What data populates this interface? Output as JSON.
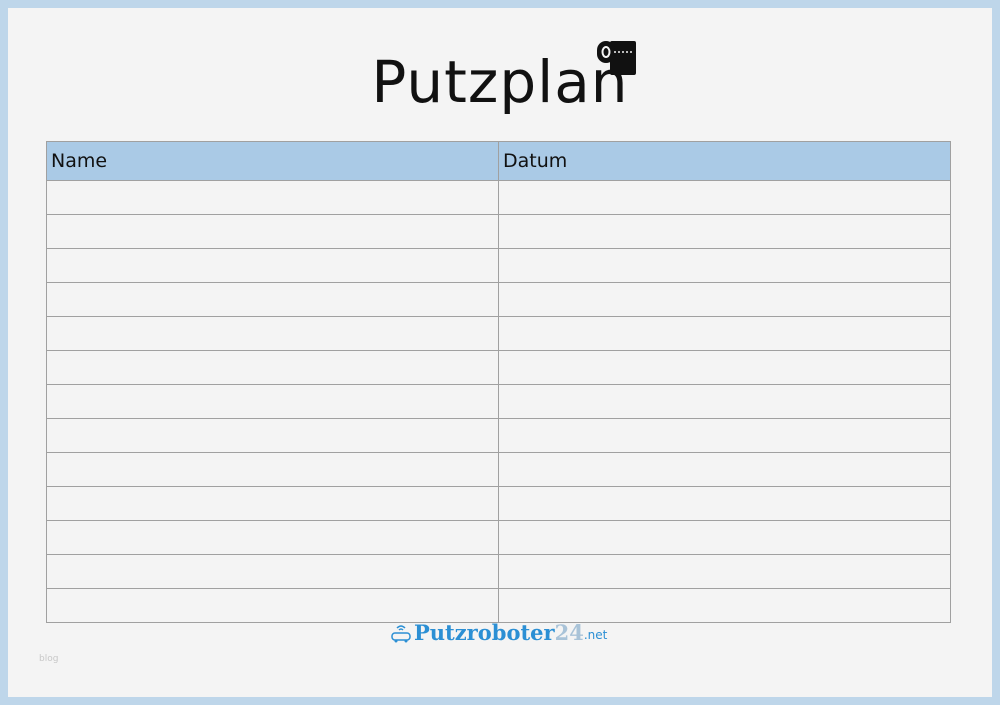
{
  "title": "Putzplan",
  "table": {
    "headers": [
      "Name",
      "Datum"
    ],
    "row_count": 13
  },
  "footer": {
    "brand": "Putzroboter",
    "brand_number": "24",
    "brand_tld": ".net",
    "note": "blog"
  },
  "colors": {
    "border": "#bed6ea",
    "header": "#aacae6",
    "brand": "#2b8fd4"
  },
  "icons": [
    "toilet-paper-icon",
    "robot-vacuum-icon"
  ]
}
